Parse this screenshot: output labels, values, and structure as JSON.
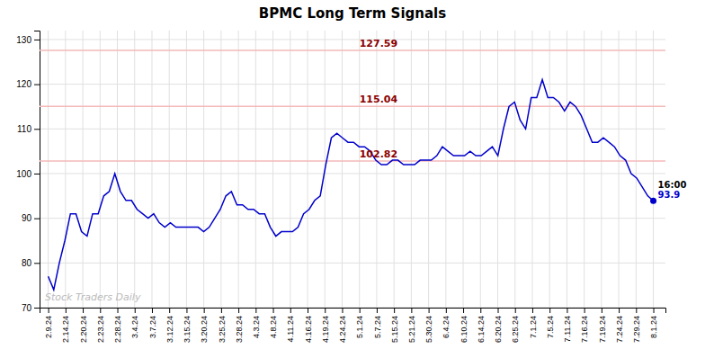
{
  "chart_data": {
    "type": "line",
    "title": "BPMC Long Term Signals",
    "color": "#0000cc",
    "grid": true,
    "xlim": [
      -0.5,
      35.7
    ],
    "xticks": [
      {
        "value": 0,
        "label": "2.9.24"
      },
      {
        "value": 1,
        "label": "2.14.24"
      },
      {
        "value": 2,
        "label": "2.20.24"
      },
      {
        "value": 3,
        "label": "2.23.24"
      },
      {
        "value": 4,
        "label": "2.28.24"
      },
      {
        "value": 5,
        "label": "3.4.24"
      },
      {
        "value": 6,
        "label": "3.7.24"
      },
      {
        "value": 7,
        "label": "3.12.24"
      },
      {
        "value": 8,
        "label": "3.15.24"
      },
      {
        "value": 9,
        "label": "3.20.24"
      },
      {
        "value": 10,
        "label": "3.25.24"
      },
      {
        "value": 11,
        "label": "3.28.24"
      },
      {
        "value": 12,
        "label": "4.3.24"
      },
      {
        "value": 13,
        "label": "4.8.24"
      },
      {
        "value": 14,
        "label": "4.11.24"
      },
      {
        "value": 15,
        "label": "4.16.24"
      },
      {
        "value": 16,
        "label": "4.19.24"
      },
      {
        "value": 17,
        "label": "4.24.24"
      },
      {
        "value": 18,
        "label": "5.1.24"
      },
      {
        "value": 19,
        "label": "5.7.24"
      },
      {
        "value": 20,
        "label": "5.15.24"
      },
      {
        "value": 21,
        "label": "5.21.24"
      },
      {
        "value": 22,
        "label": "5.30.24"
      },
      {
        "value": 23,
        "label": "6.4.24"
      },
      {
        "value": 24,
        "label": "6.10.24"
      },
      {
        "value": 25,
        "label": "6.14.24"
      },
      {
        "value": 26,
        "label": "6.20.24"
      },
      {
        "value": 27,
        "label": "6.25.24"
      },
      {
        "value": 28,
        "label": "7.1.24"
      },
      {
        "value": 29,
        "label": "7.5.24"
      },
      {
        "value": 30,
        "label": "7.11.24"
      },
      {
        "value": 31,
        "label": "7.16.24"
      },
      {
        "value": 32,
        "label": "7.19.24"
      },
      {
        "value": 33,
        "label": "7.24.24"
      },
      {
        "value": 34,
        "label": "7.29.24"
      },
      {
        "value": 35,
        "label": "8.1.24"
      }
    ],
    "ylim": [
      70,
      132
    ],
    "yticks": [
      70,
      80,
      90,
      100,
      110,
      120,
      130
    ],
    "x": [
      0,
      0.3211,
      0.6422,
      0.9633,
      1.2844,
      1.6055,
      1.9266,
      2.2477,
      2.5688,
      2.8899,
      3.211,
      3.5321,
      3.8532,
      4.1743,
      4.4954,
      4.8165,
      5.1376,
      5.4587,
      5.7798,
      6.1009,
      6.422,
      6.7431,
      7.0642,
      7.3853,
      7.7064,
      8.0275,
      8.3486,
      8.6697,
      8.9908,
      9.3119,
      9.633,
      9.9541,
      10.2752,
      10.5963,
      10.9174,
      11.2385,
      11.5596,
      11.8807,
      12.2018,
      12.5229,
      12.844,
      13.1651,
      13.4862,
      13.8073,
      14.1284,
      14.4495,
      14.7706,
      15.0917,
      15.4128,
      15.7339,
      16.055,
      16.3761,
      16.6972,
      17.0183,
      17.3394,
      17.6606,
      17.9817,
      18.3028,
      18.6239,
      18.945,
      19.2661,
      19.5872,
      19.9083,
      20.2294,
      20.5505,
      20.8716,
      21.1927,
      21.5138,
      21.8349,
      22.156,
      22.4771,
      22.7982,
      23.1193,
      23.4404,
      23.7615,
      24.0826,
      24.4037,
      24.7248,
      25.0459,
      25.367,
      25.6881,
      26.0092,
      26.3303,
      26.6514,
      26.9725,
      27.2936,
      27.6147,
      27.9358,
      28.2569,
      28.578,
      28.8991,
      29.2202,
      29.5413,
      29.8624,
      30.1835,
      30.5046,
      30.8257,
      31.1468,
      31.4679,
      31.789,
      32.1101,
      32.4312,
      32.7523,
      33.0734,
      33.3945,
      33.7156,
      34.0367,
      34.3578,
      34.6789,
      35
    ],
    "values": [
      77,
      74,
      80,
      85,
      91,
      91,
      87,
      86,
      91,
      91,
      95,
      96,
      100,
      96,
      94,
      94,
      92,
      91,
      90,
      91,
      89,
      88,
      89,
      88,
      88,
      88,
      88,
      88,
      87,
      88,
      90,
      92,
      95,
      96,
      93,
      93,
      92,
      92,
      91,
      91,
      88,
      86,
      87,
      87,
      87,
      88,
      91,
      92,
      94,
      95,
      102,
      108,
      109,
      108,
      107,
      107,
      106,
      106,
      105,
      103,
      102,
      102,
      103,
      103,
      102,
      102,
      102,
      103,
      103,
      103,
      104,
      106,
      105,
      104,
      104,
      104,
      105,
      104,
      104,
      105,
      106,
      104,
      110,
      115,
      116,
      112,
      110,
      117,
      117,
      121,
      117,
      117,
      116,
      114,
      116,
      115,
      113,
      110,
      107,
      107,
      108,
      107,
      106,
      104,
      103,
      100,
      99,
      97,
      95,
      93.9
    ],
    "hlines": [
      {
        "value": 127.59,
        "label": "127.59",
        "color": "#f5b8b8"
      },
      {
        "value": 115.04,
        "label": "115.04",
        "color": "#f5b8b8"
      },
      {
        "value": 102.82,
        "label": "102.82",
        "color": "#f5b8b8"
      }
    ],
    "hline_label_color": "#8b0000",
    "annotations": [
      {
        "text": "16:00"
      },
      {
        "text": "93.9",
        "value": 93.9,
        "color": "#0000cc"
      },
      {
        "text": "Stock Traders Daily"
      }
    ]
  }
}
